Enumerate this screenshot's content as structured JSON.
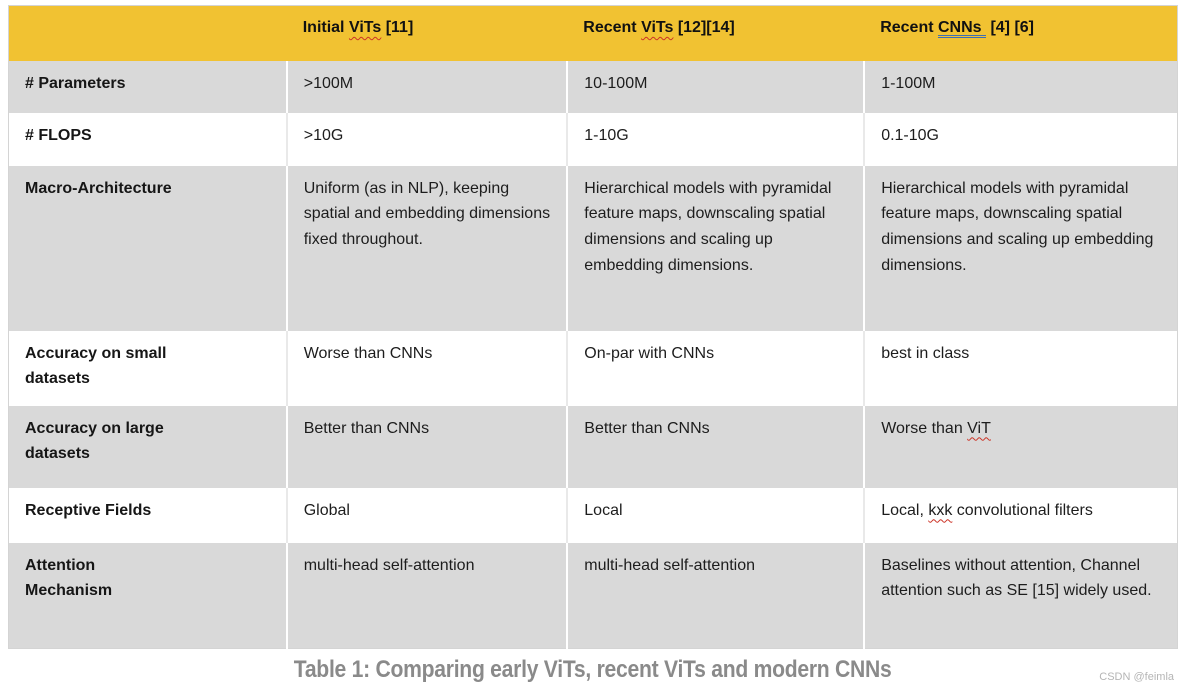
{
  "colors": {
    "header_bg": "#F1C232",
    "shaded_row_bg": "#D9D9D9",
    "plain_row_bg": "#FFFFFF",
    "spellcheck_underline": "#CC3326",
    "grammar_underline": "#3D6EB5",
    "caption_text": "#8A8A8A"
  },
  "header": {
    "col1": {
      "pre": "Initial ",
      "term": "ViTs",
      "post": " [11]"
    },
    "col2": {
      "pre": "Recent ",
      "term": "ViTs",
      "post": " [12][14]"
    },
    "col3": {
      "pre": "Recent ",
      "term": "CNNs ",
      "post": " [4] [6]"
    }
  },
  "rows": [
    {
      "label": "# Parameters",
      "c1": ">100M",
      "c2": "10-100M",
      "c3": "1-100M"
    },
    {
      "label": "# FLOPS",
      "c1": ">10G",
      "c2": "1-10G",
      "c3": "0.1-10G"
    },
    {
      "label": "Macro-Architecture",
      "c1": "Uniform (as in NLP), keeping spatial and embedding dimensions fixed throughout.",
      "c2": "Hierarchical models with pyramidal feature maps, downscaling spatial dimensions and scaling up embedding dimensions.",
      "c3": "Hierarchical models with pyramidal feature maps, downscaling spatial dimensions and scaling up embedding dimensions."
    },
    {
      "label": "Accuracy on small datasets",
      "c1": "Worse than CNNs",
      "c2": "On-par with CNNs",
      "c3": "best in class"
    },
    {
      "label": "Accuracy on large datasets",
      "c1": "Better than CNNs",
      "c2": "Better than CNNs",
      "c3": {
        "pre": "Worse than ",
        "term": "ViT",
        "post": ""
      }
    },
    {
      "label": "Receptive Fields",
      "c1": "Global",
      "c2": "Local",
      "c3": {
        "pre": "Local, ",
        "term": "kxk",
        "post": " convolutional filters"
      }
    },
    {
      "label": "Attention Mechanism",
      "c1": "multi-head self-attention",
      "c2": "multi-head self-attention",
      "c3": "Baselines without attention, Channel attention such as SE [15] widely used."
    }
  ],
  "footer": {
    "caption": "Table 1: Comparing early ViTs, recent ViTs and modern CNNs",
    "watermark": "CSDN @feimla"
  }
}
